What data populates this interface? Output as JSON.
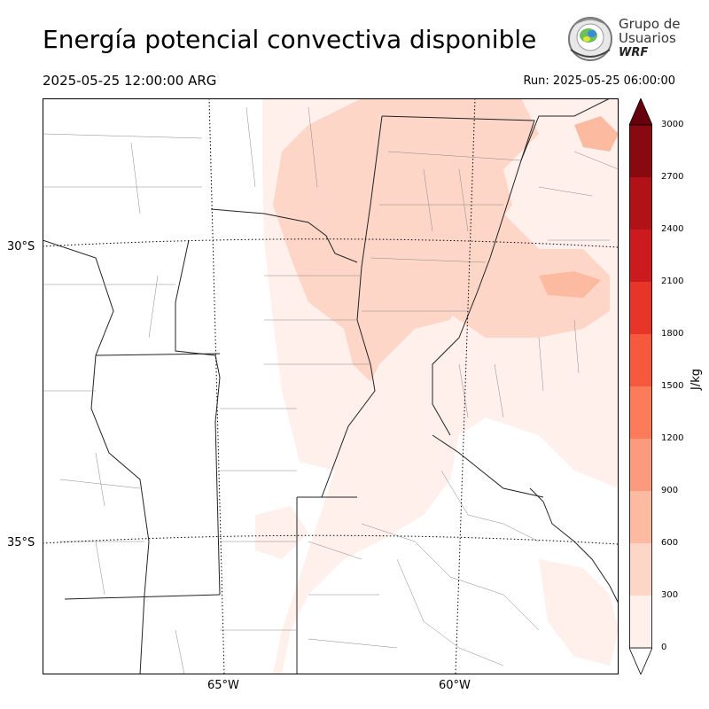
{
  "header": {
    "title": "Energía potencial convectiva disponible",
    "valid_time": "2025-05-25 12:00:00 ARG",
    "run_time": "Run: 2025-05-25 06:00:00"
  },
  "logo": {
    "line1": "Grupo de",
    "line2": "Usuarios",
    "line3": "WRF"
  },
  "map": {
    "lat_labels": [
      "30°S",
      "35°S"
    ],
    "lon_labels": [
      "65°W",
      "60°W"
    ]
  },
  "colorbar": {
    "unit": "J/kg",
    "ticks": [
      "0",
      "300",
      "600",
      "900",
      "1200",
      "1500",
      "1800",
      "2100",
      "2400",
      "2700",
      "3000"
    ],
    "colors": [
      "#fff0eb",
      "#fdd6c8",
      "#fcbaa1",
      "#fc9a7d",
      "#fb7b5b",
      "#f6583e",
      "#e8352a",
      "#cc1b1e",
      "#b01217",
      "#880a10"
    ],
    "over_color": "#67000d"
  },
  "chart_data": {
    "type": "heatmap",
    "title": "Energía potencial convectiva disponible",
    "variable": "CAPE",
    "units": "J/kg",
    "levels": [
      0,
      300,
      600,
      900,
      1200,
      1500,
      1800,
      2100,
      2400,
      2700,
      3000
    ],
    "max_level_observed": "300-600"
  }
}
